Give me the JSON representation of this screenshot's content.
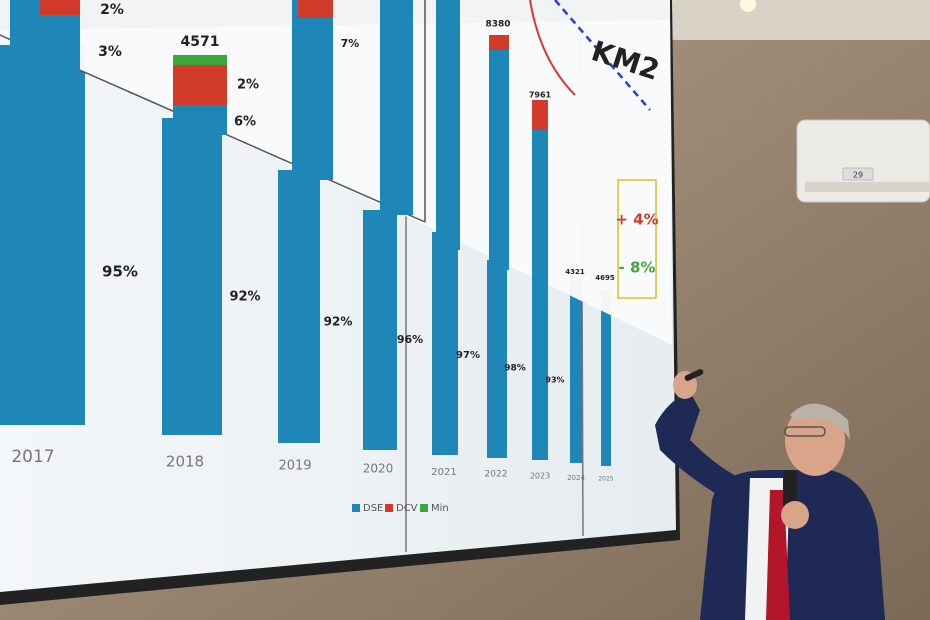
{
  "screen": {
    "lower_chart": {
      "years": [
        "2017",
        "2018",
        "2019",
        "2020",
        "2021",
        "2022",
        "2023",
        "2024",
        "2025"
      ],
      "percent_labels": [
        "95%",
        "92%",
        "92%",
        "96%",
        "97%",
        "98%",
        "93%"
      ],
      "legend": [
        "DSE",
        "DCV",
        "Min"
      ]
    },
    "upper_chart": {
      "heading": "KM2",
      "totals": [
        "4571",
        "8380",
        "7961",
        "4321",
        "4695"
      ],
      "percent_labels": [
        "2%",
        "3%",
        "2%",
        "6%",
        "7%"
      ]
    },
    "callouts": [
      "+ 4%",
      "- 8%"
    ]
  },
  "air_conditioner": {
    "display": "29"
  }
}
